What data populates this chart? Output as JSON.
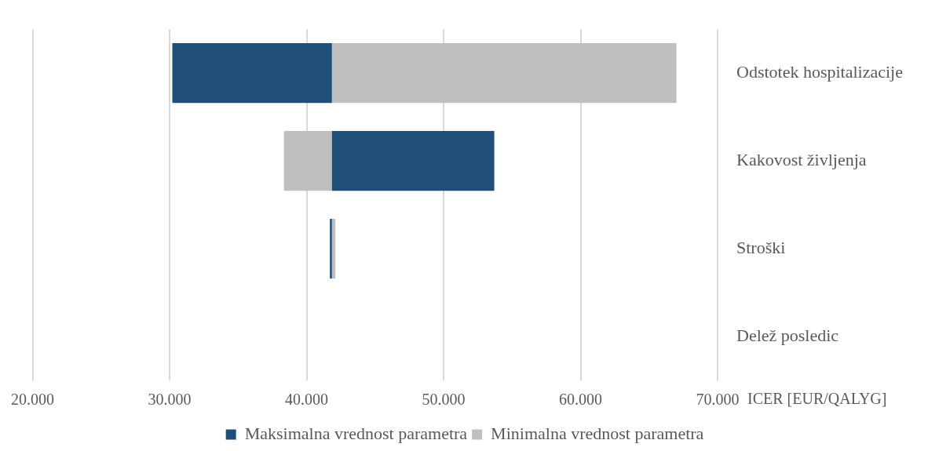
{
  "chart_data": {
    "type": "bar",
    "orientation": "horizontal",
    "xlabel": "ICER [EUR/QALYG]",
    "categories": [
      "Odstotek hospitalizacije",
      "Kakovost življenja",
      "Stroški",
      "Delež posledic"
    ],
    "series": [
      {
        "name": "Maksimalna vrednost parametra",
        "color": "#1f4e79",
        "base": [
          30200,
          41850,
          41700,
          null
        ],
        "values": [
          11650,
          11850,
          150,
          null
        ]
      },
      {
        "name": "Minimalna vrednost parametra",
        "color": "#bfbfbf",
        "base": [
          41850,
          38350,
          41850,
          null
        ],
        "values": [
          25150,
          3500,
          250,
          null
        ]
      }
    ],
    "xlim": [
      20000,
      70000
    ],
    "xticks": [
      {
        "value": 20000,
        "label": "20.000"
      },
      {
        "value": 30000,
        "label": "30.000"
      },
      {
        "value": 40000,
        "label": "40.000"
      },
      {
        "value": 50000,
        "label": "50.000"
      },
      {
        "value": 60000,
        "label": "60.000"
      },
      {
        "value": 70000,
        "label": "70.000"
      }
    ],
    "grid": "x",
    "legend": "bottom"
  }
}
